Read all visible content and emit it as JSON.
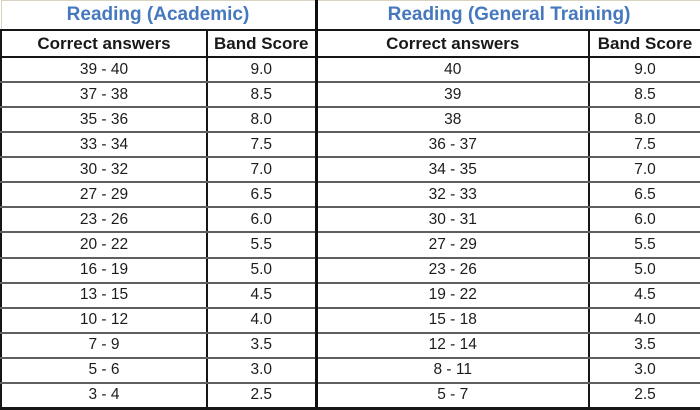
{
  "styles": {
    "title_color": "#4678bf",
    "text_color": "#1c1c1c",
    "border_color": "#161616",
    "row_line_color": "#5f5f5f",
    "background": "#ffffff"
  },
  "chart_data": [
    {
      "type": "table",
      "title": "Reading (Academic)",
      "columns": [
        "Correct answers",
        "Band Score"
      ],
      "rows": [
        [
          "39 - 40",
          "9.0"
        ],
        [
          "37 - 38",
          "8.5"
        ],
        [
          "35 - 36",
          "8.0"
        ],
        [
          "33 - 34",
          "7.5"
        ],
        [
          "30 - 32",
          "7.0"
        ],
        [
          "27 - 29",
          "6.5"
        ],
        [
          "23 - 26",
          "6.0"
        ],
        [
          "20 - 22",
          "5.5"
        ],
        [
          "16 - 19",
          "5.0"
        ],
        [
          "13 - 15",
          "4.5"
        ],
        [
          "10 - 12",
          "4.0"
        ],
        [
          "7 - 9",
          "3.5"
        ],
        [
          "5 - 6",
          "3.0"
        ],
        [
          "3 - 4",
          "2.5"
        ]
      ]
    },
    {
      "type": "table",
      "title": "Reading (General Training)",
      "columns": [
        "Correct answers",
        "Band Score"
      ],
      "rows": [
        [
          "40",
          "9.0"
        ],
        [
          "39",
          "8.5"
        ],
        [
          "38",
          "8.0"
        ],
        [
          "36 - 37",
          "7.5"
        ],
        [
          "34 - 35",
          "7.0"
        ],
        [
          "32 - 33",
          "6.5"
        ],
        [
          "30 - 31",
          "6.0"
        ],
        [
          "27 - 29",
          "5.5"
        ],
        [
          "23 - 26",
          "5.0"
        ],
        [
          "19 - 22",
          "4.5"
        ],
        [
          "15 - 18",
          "4.0"
        ],
        [
          "12 - 14",
          "3.5"
        ],
        [
          "8 - 11",
          "3.0"
        ],
        [
          "5 - 7",
          "2.5"
        ]
      ]
    }
  ]
}
